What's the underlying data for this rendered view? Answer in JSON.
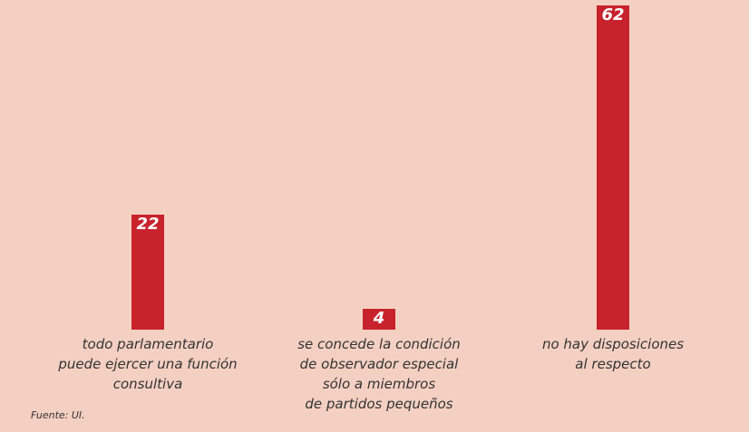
{
  "chart_data": {
    "type": "bar",
    "categories": [
      "todo parlamentario\npuede ejercer una función\nconsultiva",
      "se concede la condición\nde observador especial\nsólo a miembros\nde partidos pequeños",
      "no hay disposiciones\nal respecto"
    ],
    "values": [
      22,
      4,
      62
    ],
    "color": "#c8222c",
    "source": "Fuente: UI."
  }
}
